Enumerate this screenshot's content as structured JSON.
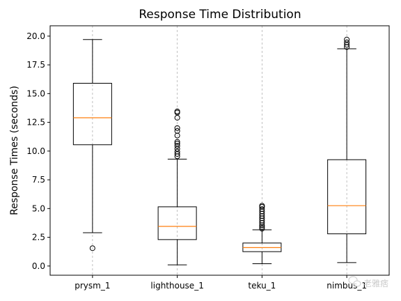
{
  "chart_data": {
    "type": "boxplot",
    "title": "Response Time Distribution",
    "xlabel": "",
    "ylabel": "Response Times (seconds)",
    "ylim": [
      -0.8,
      20.9
    ],
    "yticks": [
      0.0,
      2.5,
      5.0,
      7.5,
      10.0,
      12.5,
      15.0,
      17.5,
      20.0
    ],
    "ytick_labels": [
      "0.0",
      "2.5",
      "5.0",
      "7.5",
      "10.0",
      "12.5",
      "15.0",
      "17.5",
      "20.0"
    ],
    "grid": "x-dashed",
    "categories": [
      "prysm_1",
      "lighthouse_1",
      "teku_1",
      "nimbus_1"
    ],
    "boxes": [
      {
        "name": "prysm_1",
        "whisker_low": 2.9,
        "q1": 10.55,
        "median": 12.9,
        "q3": 15.9,
        "whisker_high": 19.7,
        "outliers": [
          1.55
        ]
      },
      {
        "name": "lighthouse_1",
        "whisker_low": 0.1,
        "q1": 2.3,
        "median": 3.45,
        "q3": 5.15,
        "whisker_high": 9.3,
        "outliers": [
          9.55,
          9.75,
          9.95,
          10.2,
          10.45,
          10.65,
          10.8,
          11.35,
          11.75,
          12.0,
          12.9,
          13.35,
          13.45
        ]
      },
      {
        "name": "teku_1",
        "whisker_low": 0.2,
        "q1": 1.25,
        "median": 1.6,
        "q3": 2.0,
        "whisker_high": 3.15,
        "outliers": [
          3.25,
          3.4,
          3.55,
          3.75,
          3.95,
          4.15,
          4.35,
          4.55,
          4.75,
          4.95,
          5.15,
          5.25
        ]
      },
      {
        "name": "nimbus_1",
        "whisker_low": 0.3,
        "q1": 2.8,
        "median": 5.25,
        "q3": 9.25,
        "whisker_high": 18.9,
        "outliers": [
          19.05,
          19.25,
          19.45,
          19.7
        ]
      }
    ],
    "colors": {
      "box": "#000000",
      "median": "#ff7f0e",
      "grid": "#b0b0b0"
    }
  },
  "watermark": {
    "icon": "wechat-icon",
    "text": "老雅痞"
  }
}
